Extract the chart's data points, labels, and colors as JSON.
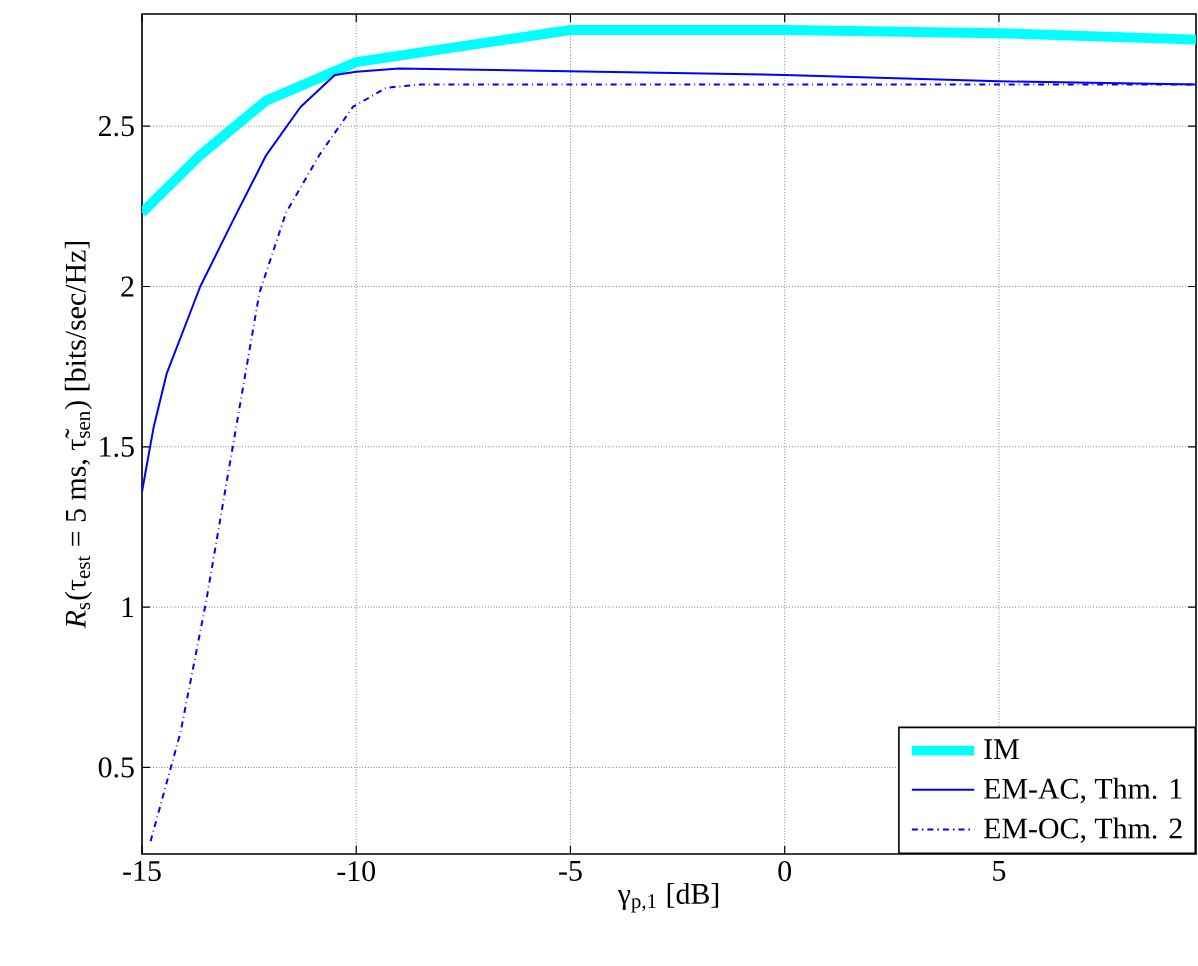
{
  "chart_data": {
    "type": "line",
    "xlabel": "γ$_{p,1}$  [dB]",
    "ylabel": "*R*$_{s}$(τ$_{est}$ = 5 ms, τ̃$_{sen}$)  [bits/sec/Hz]",
    "xlim": [
      -15,
      9.6
    ],
    "ylim": [
      0.23,
      2.85
    ],
    "xticks": [
      -15,
      -10,
      -5,
      0,
      5
    ],
    "yticks": [
      0.5,
      1,
      1.5,
      2,
      2.5
    ],
    "grid": true,
    "legend": "bottom right",
    "series": [
      {
        "name": "IM",
        "color": "#00ffff",
        "line_style": "solid",
        "x": [
          -15,
          -13.64,
          -12.1,
          -10,
          -5,
          0,
          5,
          9.6
        ],
        "values": [
          2.23,
          2.41,
          2.58,
          2.7,
          2.8,
          2.8,
          2.79,
          2.77
        ]
      },
      {
        "name": "EM-AC, Thm. 1",
        "color": "#0000ff",
        "line_style": "solid",
        "x": [
          -15,
          -14.73,
          -14.42,
          -13.64,
          -12.86,
          -12.1,
          -11.3,
          -10.5,
          -10,
          -9,
          0,
          5,
          9.6
        ],
        "values": [
          1.36,
          1.56,
          1.73,
          2.0,
          2.21,
          2.41,
          2.56,
          2.66,
          2.67,
          2.68,
          2.66,
          2.64,
          2.63
        ]
      },
      {
        "name": "EM-OC, Thm. 2",
        "color": "#0000ff",
        "line_style": "dashdot",
        "x": [
          -14.8,
          -14.1,
          -13.5,
          -12.96,
          -12.26,
          -11.64,
          -10.86,
          -10.08,
          -9.3,
          -8.5,
          0,
          5,
          9.6
        ],
        "values": [
          0.27,
          0.61,
          1.02,
          1.44,
          1.98,
          2.23,
          2.41,
          2.56,
          2.62,
          2.63,
          2.63,
          2.63,
          2.63
        ]
      }
    ]
  }
}
